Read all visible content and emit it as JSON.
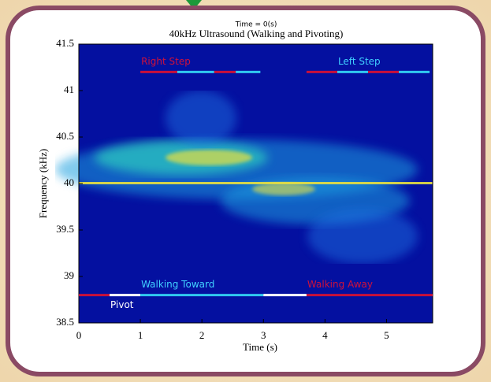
{
  "chart_data": {
    "type": "spectrogram",
    "supertitle": "Time = 0(s)",
    "title": "40kHz Ultrasound (Walking and Pivoting)",
    "xlabel": "Time (s)",
    "ylabel": "Frequency (kHz)",
    "xlim": [
      0,
      5.75
    ],
    "ylim": [
      38.5,
      41.5
    ],
    "xticks": [
      0,
      1,
      2,
      3,
      4,
      5
    ],
    "yticks": [
      38.5,
      39,
      39.5,
      40,
      40.5,
      41,
      41.5
    ],
    "annotations": [
      {
        "y": 41.2,
        "labels": [
          {
            "text": "Right Step",
            "x": 1.0,
            "color": "#d0103a"
          },
          {
            "text": "Left Step",
            "x": 4.2,
            "color": "#40d0ff"
          }
        ],
        "segments": [
          {
            "start": 1.0,
            "end": 1.6,
            "color": "#c8103a"
          },
          {
            "start": 1.6,
            "end": 2.2,
            "color": "#30c8f0"
          },
          {
            "start": 2.2,
            "end": 2.55,
            "color": "#c8103a"
          },
          {
            "start": 2.55,
            "end": 2.95,
            "color": "#30c8f0"
          },
          {
            "start": 3.7,
            "end": 4.2,
            "color": "#c8103a"
          },
          {
            "start": 4.2,
            "end": 4.7,
            "color": "#30c8f0"
          },
          {
            "start": 4.7,
            "end": 5.2,
            "color": "#c8103a"
          },
          {
            "start": 5.2,
            "end": 5.7,
            "color": "#30c8f0"
          }
        ]
      },
      {
        "y": 38.8,
        "labels": [
          {
            "text": "Pivot",
            "x": 0.5,
            "color": "#ffffff",
            "below": true
          },
          {
            "text": "Walking Toward",
            "x": 1.0,
            "color": "#40d0ff"
          },
          {
            "text": "Walking Away",
            "x": 3.7,
            "color": "#d0103a"
          }
        ],
        "segments": [
          {
            "start": 0,
            "end": 0.5,
            "color": "#c8103a"
          },
          {
            "start": 0.5,
            "end": 1.0,
            "color": "#ffffff"
          },
          {
            "start": 1.0,
            "end": 3.0,
            "color": "#30c8f0"
          },
          {
            "start": 3.0,
            "end": 3.7,
            "color": "#ffffff"
          },
          {
            "start": 3.7,
            "end": 5.75,
            "color": "#c8103a"
          }
        ]
      }
    ]
  }
}
